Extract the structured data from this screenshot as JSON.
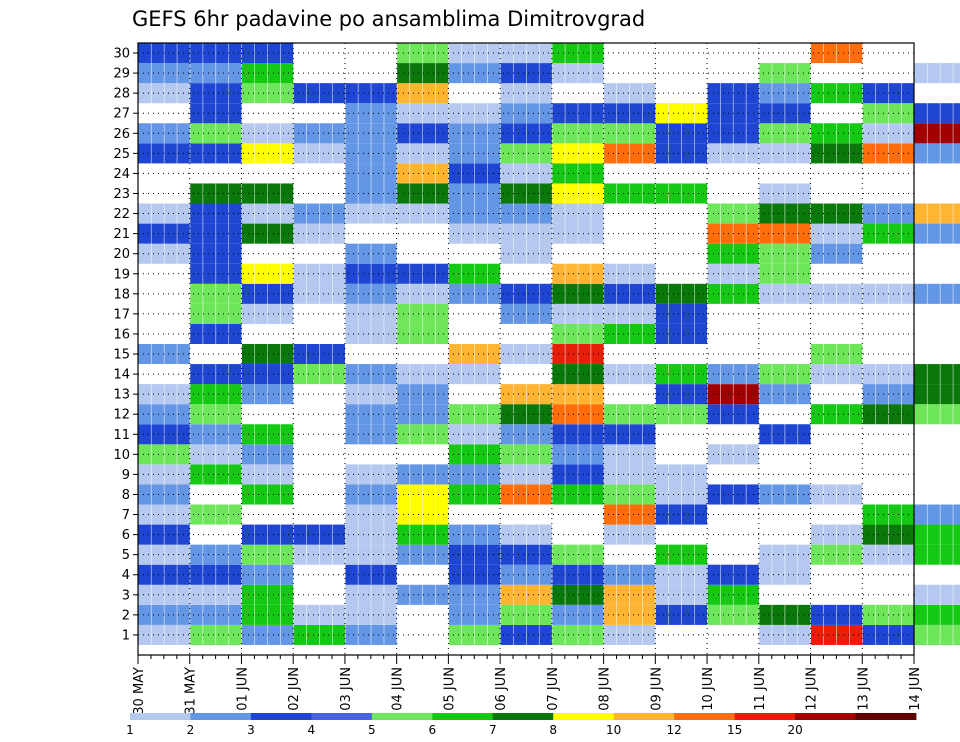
{
  "chart_data": {
    "type": "heatmap",
    "title": "GEFS 6hr padavine po ansamblima Dimitrovgrad",
    "x_tick_labels": [
      "30 MAY",
      "31 MAY",
      "01 JUN",
      "02 JUN",
      "03 JUN",
      "04 JUN",
      "05 JUN",
      "06 JUN",
      "07 JUN",
      "08 JUN",
      "09 JUN",
      "10 JUN",
      "11 JUN",
      "12 JUN",
      "13 JUN",
      "14 JUN"
    ],
    "y_tick_labels": [
      "1",
      "2",
      "3",
      "4",
      "5",
      "6",
      "7",
      "8",
      "9",
      "10",
      "11",
      "12",
      "13",
      "14",
      "15",
      "16",
      "17",
      "18",
      "19",
      "20",
      "21",
      "22",
      "23",
      "24",
      "25",
      "26",
      "27",
      "28",
      "29",
      "30"
    ],
    "x_range": [
      "30 MAY",
      "14 JUN"
    ],
    "y_range": [
      0,
      30
    ],
    "grid": "dotted",
    "legend_position": "bottom",
    "legend_values": [
      "1",
      "2",
      "3",
      "4",
      "5",
      "6",
      "7",
      "8",
      "10",
      "12",
      "15",
      "20"
    ],
    "legend_colors": [
      "#b4c8f0",
      "#6496e6",
      "#1e46d2",
      "#4664dc",
      "#6ee65a",
      "#14c814",
      "#0a780a",
      "#ffff00",
      "#ffb432",
      "#ff6e0a",
      "#e61e0a",
      "#a00000",
      "#640000"
    ],
    "cells": [
      [
        0,
        1,
        1
      ],
      [
        0,
        2,
        2
      ],
      [
        0,
        3,
        1
      ],
      [
        0,
        4,
        3
      ],
      [
        0,
        5,
        1
      ],
      [
        0,
        6,
        3
      ],
      [
        0,
        7,
        1
      ],
      [
        0,
        8,
        2
      ],
      [
        0,
        9,
        1
      ],
      [
        0,
        10,
        5
      ],
      [
        0,
        11,
        3
      ],
      [
        0,
        12,
        2
      ],
      [
        0,
        13,
        1
      ],
      [
        0,
        15,
        2
      ],
      [
        0,
        20,
        1
      ],
      [
        0,
        21,
        3
      ],
      [
        0,
        22,
        1
      ],
      [
        0,
        25,
        3
      ],
      [
        0,
        26,
        2
      ],
      [
        0,
        28,
        1
      ],
      [
        0,
        29,
        2
      ],
      [
        0,
        30,
        3
      ],
      [
        1,
        1,
        5
      ],
      [
        1,
        2,
        2
      ],
      [
        1,
        3,
        1
      ],
      [
        1,
        4,
        3
      ],
      [
        1,
        5,
        2
      ],
      [
        1,
        7,
        5
      ],
      [
        1,
        9,
        6
      ],
      [
        1,
        10,
        1
      ],
      [
        1,
        11,
        2
      ],
      [
        1,
        12,
        5
      ],
      [
        1,
        13,
        6
      ],
      [
        1,
        14,
        3
      ],
      [
        1,
        16,
        3
      ],
      [
        1,
        17,
        5
      ],
      [
        1,
        18,
        5
      ],
      [
        1,
        19,
        3
      ],
      [
        1,
        20,
        3
      ],
      [
        1,
        21,
        3
      ],
      [
        1,
        22,
        3
      ],
      [
        1,
        23,
        7
      ],
      [
        1,
        25,
        3
      ],
      [
        1,
        26,
        5
      ],
      [
        1,
        27,
        3
      ],
      [
        1,
        28,
        3
      ],
      [
        1,
        29,
        2
      ],
      [
        1,
        30,
        3
      ],
      [
        2,
        1,
        2
      ],
      [
        2,
        2,
        6
      ],
      [
        2,
        3,
        6
      ],
      [
        2,
        4,
        2
      ],
      [
        2,
        5,
        5
      ],
      [
        2,
        6,
        3
      ],
      [
        2,
        8,
        6
      ],
      [
        2,
        9,
        1
      ],
      [
        2,
        10,
        2
      ],
      [
        2,
        11,
        6
      ],
      [
        2,
        13,
        2
      ],
      [
        2,
        14,
        3
      ],
      [
        2,
        15,
        7
      ],
      [
        2,
        17,
        1
      ],
      [
        2,
        18,
        3
      ],
      [
        2,
        19,
        8
      ],
      [
        2,
        21,
        7
      ],
      [
        2,
        22,
        1
      ],
      [
        2,
        23,
        7
      ],
      [
        2,
        25,
        8
      ],
      [
        2,
        26,
        1
      ],
      [
        2,
        28,
        5
      ],
      [
        2,
        29,
        6
      ],
      [
        2,
        30,
        3
      ],
      [
        3,
        1,
        6
      ],
      [
        3,
        2,
        1
      ],
      [
        3,
        5,
        1
      ],
      [
        3,
        6,
        3
      ],
      [
        3,
        14,
        5
      ],
      [
        3,
        15,
        3
      ],
      [
        3,
        18,
        1
      ],
      [
        3,
        19,
        1
      ],
      [
        3,
        21,
        1
      ],
      [
        3,
        22,
        2
      ],
      [
        3,
        25,
        1
      ],
      [
        3,
        26,
        2
      ],
      [
        3,
        28,
        3
      ],
      [
        4,
        1,
        2
      ],
      [
        4,
        2,
        1
      ],
      [
        4,
        3,
        1
      ],
      [
        4,
        4,
        3
      ],
      [
        4,
        5,
        1
      ],
      [
        4,
        6,
        1
      ],
      [
        4,
        7,
        1
      ],
      [
        4,
        8,
        2
      ],
      [
        4,
        9,
        1
      ],
      [
        4,
        11,
        2
      ],
      [
        4,
        12,
        2
      ],
      [
        4,
        13,
        1
      ],
      [
        4,
        14,
        2
      ],
      [
        4,
        16,
        1
      ],
      [
        4,
        17,
        1
      ],
      [
        4,
        18,
        2
      ],
      [
        4,
        19,
        3
      ],
      [
        4,
        20,
        2
      ],
      [
        4,
        22,
        1
      ],
      [
        4,
        23,
        2
      ],
      [
        4,
        24,
        2
      ],
      [
        4,
        25,
        2
      ],
      [
        4,
        26,
        2
      ],
      [
        4,
        27,
        2
      ],
      [
        4,
        28,
        3
      ],
      [
        5,
        3,
        2
      ],
      [
        5,
        5,
        2
      ],
      [
        5,
        6,
        6
      ],
      [
        5,
        7,
        8
      ],
      [
        5,
        8,
        8
      ],
      [
        5,
        9,
        2
      ],
      [
        5,
        11,
        5
      ],
      [
        5,
        12,
        2
      ],
      [
        5,
        13,
        2
      ],
      [
        5,
        14,
        1
      ],
      [
        5,
        16,
        5
      ],
      [
        5,
        17,
        5
      ],
      [
        5,
        18,
        1
      ],
      [
        5,
        19,
        3
      ],
      [
        5,
        22,
        1
      ],
      [
        5,
        23,
        7
      ],
      [
        5,
        24,
        9
      ],
      [
        5,
        25,
        1
      ],
      [
        5,
        26,
        3
      ],
      [
        5,
        27,
        1
      ],
      [
        5,
        28,
        9
      ],
      [
        5,
        29,
        7
      ],
      [
        5,
        30,
        5
      ],
      [
        6,
        1,
        5
      ],
      [
        6,
        2,
        2
      ],
      [
        6,
        3,
        2
      ],
      [
        6,
        4,
        3
      ],
      [
        6,
        5,
        3
      ],
      [
        6,
        6,
        2
      ],
      [
        6,
        8,
        6
      ],
      [
        6,
        9,
        2
      ],
      [
        6,
        10,
        6
      ],
      [
        6,
        11,
        1
      ],
      [
        6,
        12,
        5
      ],
      [
        6,
        14,
        1
      ],
      [
        6,
        15,
        9
      ],
      [
        6,
        18,
        2
      ],
      [
        6,
        19,
        6
      ],
      [
        6,
        21,
        1
      ],
      [
        6,
        22,
        2
      ],
      [
        6,
        23,
        2
      ],
      [
        6,
        24,
        3
      ],
      [
        6,
        25,
        2
      ],
      [
        6,
        26,
        2
      ],
      [
        6,
        27,
        1
      ],
      [
        6,
        29,
        2
      ],
      [
        6,
        30,
        1
      ],
      [
        7,
        1,
        3
      ],
      [
        7,
        2,
        5
      ],
      [
        7,
        3,
        9
      ],
      [
        7,
        4,
        2
      ],
      [
        7,
        5,
        3
      ],
      [
        7,
        6,
        1
      ],
      [
        7,
        8,
        10
      ],
      [
        7,
        9,
        1
      ],
      [
        7,
        10,
        5
      ],
      [
        7,
        11,
        2
      ],
      [
        7,
        12,
        7
      ],
      [
        7,
        13,
        9
      ],
      [
        7,
        15,
        1
      ],
      [
        7,
        17,
        2
      ],
      [
        7,
        18,
        3
      ],
      [
        7,
        20,
        1
      ],
      [
        7,
        21,
        1
      ],
      [
        7,
        22,
        2
      ],
      [
        7,
        23,
        7
      ],
      [
        7,
        24,
        1
      ],
      [
        7,
        25,
        5
      ],
      [
        7,
        26,
        3
      ],
      [
        7,
        27,
        2
      ],
      [
        7,
        28,
        1
      ],
      [
        7,
        29,
        3
      ],
      [
        7,
        30,
        1
      ],
      [
        8,
        1,
        5
      ],
      [
        8,
        2,
        2
      ],
      [
        8,
        3,
        7
      ],
      [
        8,
        4,
        3
      ],
      [
        8,
        5,
        5
      ],
      [
        8,
        8,
        6
      ],
      [
        8,
        9,
        3
      ],
      [
        8,
        10,
        2
      ],
      [
        8,
        11,
        3
      ],
      [
        8,
        12,
        10
      ],
      [
        8,
        13,
        9
      ],
      [
        8,
        14,
        7
      ],
      [
        8,
        15,
        11
      ],
      [
        8,
        16,
        5
      ],
      [
        8,
        17,
        1
      ],
      [
        8,
        18,
        7
      ],
      [
        8,
        19,
        9
      ],
      [
        8,
        21,
        1
      ],
      [
        8,
        22,
        1
      ],
      [
        8,
        23,
        8
      ],
      [
        8,
        24,
        6
      ],
      [
        8,
        25,
        8
      ],
      [
        8,
        26,
        5
      ],
      [
        8,
        27,
        3
      ],
      [
        8,
        29,
        1
      ],
      [
        8,
        30,
        6
      ],
      [
        9,
        1,
        1
      ],
      [
        9,
        2,
        9
      ],
      [
        9,
        3,
        9
      ],
      [
        9,
        4,
        2
      ],
      [
        9,
        6,
        1
      ],
      [
        9,
        7,
        10
      ],
      [
        9,
        8,
        5
      ],
      [
        9,
        9,
        1
      ],
      [
        9,
        10,
        1
      ],
      [
        9,
        11,
        3
      ],
      [
        9,
        12,
        5
      ],
      [
        9,
        14,
        1
      ],
      [
        9,
        16,
        6
      ],
      [
        9,
        17,
        1
      ],
      [
        9,
        18,
        3
      ],
      [
        9,
        19,
        1
      ],
      [
        9,
        23,
        6
      ],
      [
        9,
        25,
        10
      ],
      [
        9,
        26,
        5
      ],
      [
        9,
        27,
        3
      ],
      [
        9,
        28,
        1
      ],
      [
        10,
        2,
        3
      ],
      [
        10,
        3,
        1
      ],
      [
        10,
        4,
        1
      ],
      [
        10,
        5,
        6
      ],
      [
        10,
        7,
        3
      ],
      [
        10,
        8,
        1
      ],
      [
        10,
        9,
        1
      ],
      [
        10,
        12,
        5
      ],
      [
        10,
        13,
        3
      ],
      [
        10,
        14,
        6
      ],
      [
        10,
        16,
        3
      ],
      [
        10,
        17,
        3
      ],
      [
        10,
        18,
        7
      ],
      [
        10,
        23,
        6
      ],
      [
        10,
        25,
        3
      ],
      [
        10,
        26,
        3
      ],
      [
        10,
        27,
        8
      ],
      [
        11,
        2,
        5
      ],
      [
        11,
        3,
        6
      ],
      [
        11,
        4,
        3
      ],
      [
        11,
        8,
        3
      ],
      [
        11,
        10,
        1
      ],
      [
        11,
        12,
        3
      ],
      [
        11,
        13,
        12
      ],
      [
        11,
        14,
        2
      ],
      [
        11,
        18,
        6
      ],
      [
        11,
        19,
        1
      ],
      [
        11,
        20,
        6
      ],
      [
        11,
        21,
        10
      ],
      [
        11,
        22,
        5
      ],
      [
        11,
        25,
        1
      ],
      [
        11,
        26,
        3
      ],
      [
        11,
        27,
        3
      ],
      [
        11,
        28,
        3
      ],
      [
        12,
        1,
        1
      ],
      [
        12,
        2,
        7
      ],
      [
        12,
        4,
        1
      ],
      [
        12,
        5,
        1
      ],
      [
        12,
        8,
        2
      ],
      [
        12,
        11,
        3
      ],
      [
        12,
        13,
        2
      ],
      [
        12,
        14,
        5
      ],
      [
        12,
        18,
        1
      ],
      [
        12,
        19,
        5
      ],
      [
        12,
        20,
        5
      ],
      [
        12,
        21,
        10
      ],
      [
        12,
        22,
        7
      ],
      [
        12,
        23,
        1
      ],
      [
        12,
        25,
        1
      ],
      [
        12,
        26,
        5
      ],
      [
        12,
        27,
        3
      ],
      [
        12,
        28,
        2
      ],
      [
        12,
        29,
        5
      ],
      [
        13,
        1,
        11
      ],
      [
        13,
        2,
        3
      ],
      [
        13,
        5,
        5
      ],
      [
        13,
        6,
        1
      ],
      [
        13,
        8,
        1
      ],
      [
        13,
        12,
        6
      ],
      [
        13,
        14,
        1
      ],
      [
        13,
        15,
        5
      ],
      [
        13,
        18,
        1
      ],
      [
        13,
        20,
        2
      ],
      [
        13,
        21,
        1
      ],
      [
        13,
        22,
        7
      ],
      [
        13,
        25,
        7
      ],
      [
        13,
        26,
        6
      ],
      [
        13,
        28,
        6
      ],
      [
        13,
        30,
        10
      ],
      [
        14,
        1,
        3
      ],
      [
        14,
        2,
        5
      ],
      [
        14,
        5,
        1
      ],
      [
        14,
        6,
        7
      ],
      [
        14,
        7,
        6
      ],
      [
        14,
        12,
        7
      ],
      [
        14,
        13,
        2
      ],
      [
        14,
        14,
        1
      ],
      [
        14,
        18,
        1
      ],
      [
        14,
        21,
        6
      ],
      [
        14,
        22,
        2
      ],
      [
        14,
        25,
        10
      ],
      [
        14,
        26,
        1
      ],
      [
        14,
        27,
        5
      ],
      [
        14,
        28,
        3
      ],
      [
        15,
        1,
        5
      ],
      [
        15,
        2,
        6
      ],
      [
        15,
        3,
        1
      ],
      [
        15,
        5,
        6
      ],
      [
        15,
        6,
        6
      ],
      [
        15,
        7,
        2
      ],
      [
        15,
        12,
        5
      ],
      [
        15,
        13,
        7
      ],
      [
        15,
        14,
        7
      ],
      [
        15,
        18,
        2
      ],
      [
        15,
        21,
        2
      ],
      [
        15,
        22,
        9
      ],
      [
        15,
        25,
        2
      ],
      [
        15,
        26,
        12
      ],
      [
        15,
        27,
        3
      ],
      [
        15,
        29,
        1
      ]
    ]
  }
}
